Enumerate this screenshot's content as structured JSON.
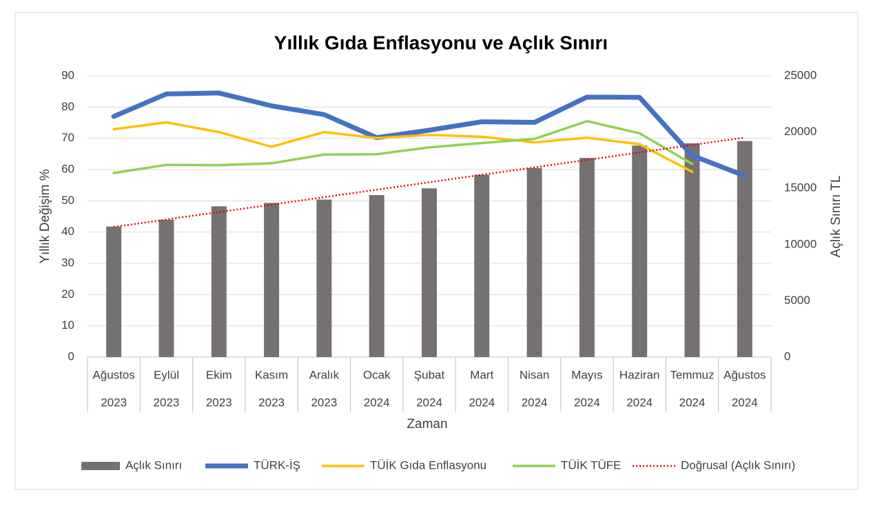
{
  "chart_data": {
    "type": "bar",
    "title": "Yıllık Gıda Enflasyonu ve Açlık Sınırı",
    "x_label": "Zaman",
    "y_label": "Yıllık Değişim %",
    "y2_label": "Açlık Sınırı TL",
    "categories": [
      [
        "Ağustos",
        "2023"
      ],
      [
        "Eylül",
        "2023"
      ],
      [
        "Ekim",
        "2023"
      ],
      [
        "Kasım",
        "2023"
      ],
      [
        "Aralık",
        "2023"
      ],
      [
        "Ocak",
        "2024"
      ],
      [
        "Şubat",
        "2024"
      ],
      [
        "Mart",
        "2024"
      ],
      [
        "Nisan",
        "2024"
      ],
      [
        "Mayıs",
        "2024"
      ],
      [
        "Haziran",
        "2024"
      ],
      [
        "Temmuz",
        "2024"
      ],
      [
        "Ağustos",
        "2024"
      ]
    ],
    "ylim": [
      0,
      90
    ],
    "yticks": [
      0,
      10,
      20,
      30,
      40,
      50,
      60,
      70,
      80,
      90
    ],
    "y2lim": [
      0,
      25000
    ],
    "y2ticks": [
      0,
      5000,
      10000,
      15000,
      20000,
      25000
    ],
    "grid": true,
    "legend": "bottom",
    "series": [
      {
        "name": "Açlık Sınırı",
        "type": "bar",
        "axis": "y2",
        "color": "#767171",
        "values": [
          11600,
          12200,
          13400,
          13700,
          14000,
          14400,
          15000,
          16200,
          16800,
          17700,
          18800,
          19000,
          19200
        ]
      },
      {
        "name": "TÜRK-İŞ",
        "type": "line",
        "color": "#4472c4",
        "width": 7,
        "values": [
          77,
          84.2,
          84.5,
          80.4,
          77.6,
          70.2,
          72.6,
          75.3,
          75.1,
          83.2,
          83.1,
          64.5,
          58
        ]
      },
      {
        "name": "TÜİK Gıda Enflasyonu",
        "type": "line",
        "color": "#ffc000",
        "width": 3.5,
        "values": [
          72.9,
          75.1,
          72,
          67.3,
          72,
          70.1,
          71.1,
          70.5,
          68.7,
          70.2,
          68.1,
          59.3,
          null
        ]
      },
      {
        "name": "TÜİK TÜFE",
        "type": "line",
        "color": "#92d050",
        "width": 3.5,
        "values": [
          58.9,
          61.5,
          61.4,
          62,
          64.8,
          64.9,
          67.1,
          68.5,
          69.8,
          75.5,
          71.6,
          61.8,
          null
        ]
      },
      {
        "name": "Doğrusal (Açlık Sınırı)",
        "type": "trendline",
        "of": 0,
        "color": "#e00000"
      }
    ]
  }
}
